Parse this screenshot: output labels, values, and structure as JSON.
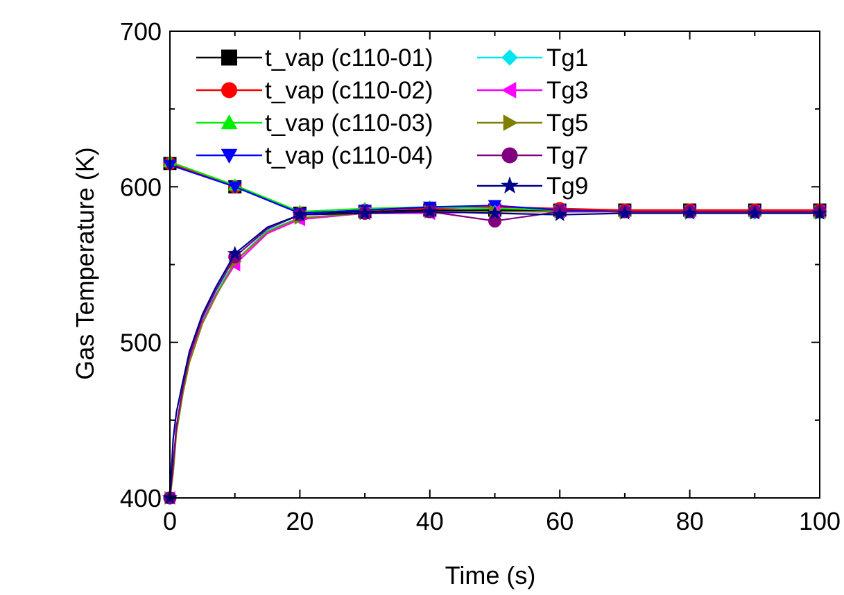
{
  "chart_data": {
    "type": "line",
    "xlabel": "Time (s)",
    "ylabel": "Gas Temperature (K)",
    "xlim": [
      0,
      100
    ],
    "ylim": [
      400,
      700
    ],
    "x_ticks": [
      0,
      20,
      40,
      60,
      80,
      100
    ],
    "y_ticks": [
      400,
      500,
      600,
      700
    ],
    "x_tick_labels": [
      "0",
      "20",
      "40",
      "60",
      "80",
      "100"
    ],
    "y_tick_labels": [
      "400",
      "500",
      "600",
      "700"
    ],
    "legend_position": "top-left",
    "series": [
      {
        "name": "t_vap (c110-01)",
        "color": "#000000",
        "marker": "square",
        "x": [
          0,
          10,
          20,
          30,
          40,
          50,
          60,
          70,
          80,
          90,
          100
        ],
        "y": [
          615,
          600,
          583,
          584,
          585,
          585,
          585,
          585,
          585,
          585,
          585
        ]
      },
      {
        "name": "t_vap (c110-02)",
        "color": "#ff0000",
        "marker": "circle",
        "x": [
          0,
          10,
          20,
          30,
          40,
          50,
          60,
          70,
          80,
          90,
          100
        ],
        "y": [
          615,
          600,
          583,
          585,
          586,
          587,
          586,
          585,
          585,
          585,
          585
        ]
      },
      {
        "name": "t_vap (c110-03)",
        "color": "#00ee00",
        "marker": "triangle-up",
        "x": [
          0,
          10,
          20,
          30,
          40,
          50,
          60,
          70,
          80,
          90,
          100
        ],
        "y": [
          616,
          601,
          584,
          586,
          587,
          586,
          585,
          584,
          584,
          584,
          583
        ]
      },
      {
        "name": "t_vap (c110-04)",
        "color": "#0000ff",
        "marker": "triangle-down",
        "x": [
          0,
          10,
          20,
          30,
          40,
          50,
          60,
          70,
          80,
          90,
          100
        ],
        "y": [
          614,
          600,
          583,
          585,
          587,
          588,
          585,
          584,
          584,
          584,
          584
        ]
      },
      {
        "name": "Tg1",
        "color": "#00e5ee",
        "marker": "diamond",
        "x": [
          0,
          0.5,
          1,
          2,
          3,
          5,
          7,
          10,
          15,
          20,
          30,
          40,
          50,
          60,
          70,
          80,
          90,
          100
        ],
        "y": [
          400,
          420,
          445,
          470,
          490,
          515,
          532,
          552,
          572,
          580,
          583,
          584,
          584,
          584,
          584,
          584,
          583,
          583
        ]
      },
      {
        "name": "Tg3",
        "color": "#ff00ff",
        "marker": "triangle-left",
        "x": [
          0,
          0.5,
          1,
          2,
          3,
          5,
          7,
          10,
          15,
          20,
          30,
          40,
          50,
          60,
          70,
          80,
          90,
          100
        ],
        "y": [
          400,
          418,
          443,
          468,
          488,
          513,
          530,
          550,
          570,
          579,
          583,
          583,
          584,
          584,
          584,
          584,
          584,
          584
        ]
      },
      {
        "name": "Tg5",
        "color": "#808000",
        "marker": "triangle-right",
        "x": [
          0,
          0.5,
          1,
          2,
          3,
          5,
          7,
          10,
          15,
          20,
          30,
          40,
          50,
          60,
          70,
          80,
          90,
          100
        ],
        "y": [
          400,
          416,
          442,
          467,
          487,
          512,
          529,
          552,
          571,
          580,
          583,
          584,
          584,
          584,
          584,
          584,
          584,
          584
        ]
      },
      {
        "name": "Tg7",
        "color": "#800080",
        "marker": "circle",
        "x": [
          0,
          0.5,
          1,
          2,
          3,
          5,
          7,
          10,
          15,
          20,
          30,
          40,
          50,
          60,
          70,
          80,
          90,
          100
        ],
        "y": [
          400,
          422,
          446,
          471,
          491,
          516,
          533,
          555,
          573,
          582,
          583,
          584,
          578,
          584,
          584,
          584,
          584,
          584
        ]
      },
      {
        "name": "Tg9",
        "color": "#00008b",
        "marker": "star",
        "x": [
          0,
          0.5,
          1,
          2,
          3,
          5,
          7,
          10,
          15,
          20,
          30,
          40,
          50,
          60,
          70,
          80,
          90,
          100
        ],
        "y": [
          400,
          438,
          455,
          475,
          494,
          518,
          535,
          557,
          574,
          582,
          583,
          584,
          583,
          582,
          583,
          583,
          583,
          583
        ]
      }
    ]
  }
}
